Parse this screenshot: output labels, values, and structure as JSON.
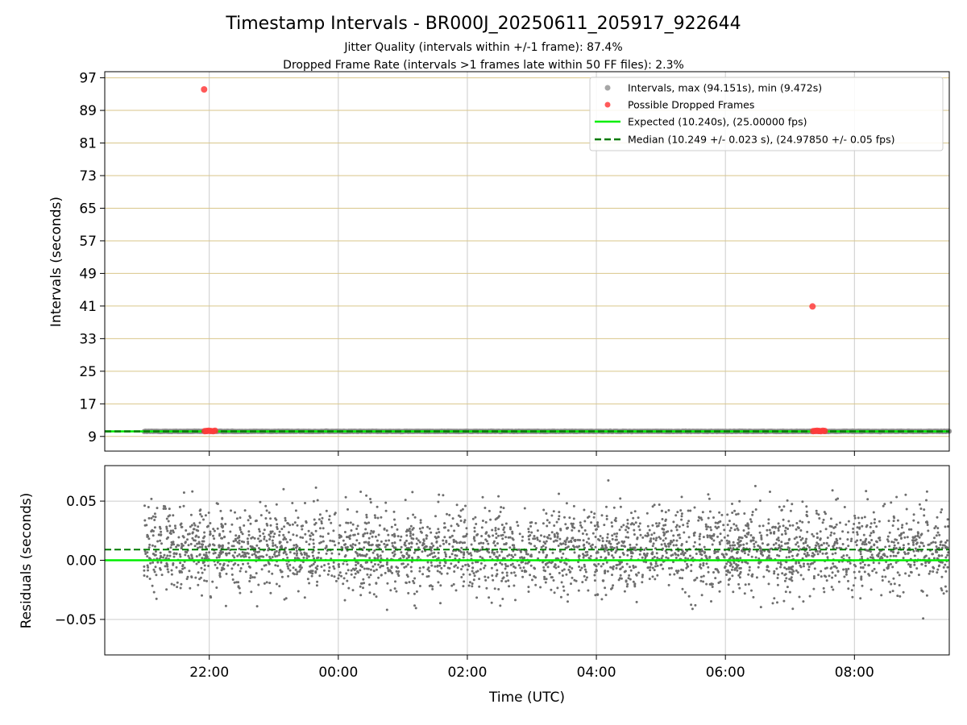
{
  "title": "Timestamp Intervals - BR000J_20250611_205917_922644",
  "subtitle_lines": [
    "Jitter Quality (intervals within +/-1 frame): 87.4%",
    "Dropped Frame Rate (intervals >1 frames late within 50 FF files): 2.3%"
  ],
  "colors": {
    "interval_points": "#8c8c8c",
    "dropped_points": "#ff3b3b",
    "expected_line": "#00ee00",
    "median_line": "#007a00",
    "residual_points": "#6e6e6e",
    "top_hgrid": "#d9c68a",
    "vgrid": "#cccccc"
  },
  "chart_data": [
    {
      "type": "scatter",
      "ylabel": "Intervals (seconds)",
      "xlabel": "",
      "x_units": "hours since 2025-06-11 00:00 UTC",
      "xlim": [
        20.38,
        33.47
      ],
      "ylim": [
        5.4,
        98.5
      ],
      "yticks": [
        9,
        17,
        25,
        33,
        41,
        49,
        57,
        65,
        73,
        81,
        89,
        97
      ],
      "xticks": [
        22,
        24,
        26,
        28,
        30,
        32
      ],
      "x_tick_labels": [
        "22:00",
        "00:00",
        "02:00",
        "04:00",
        "06:00",
        "08:00"
      ],
      "grid": "horizontal and vertical",
      "legend_position": "top-right",
      "legend": [
        "Intervals, max (94.151s), min (9.472s)",
        "Possible Dropped Frames",
        "Expected (10.240s), (25.00000 fps)",
        "Median (10.249 +/- 0.023 s), (24.97850 +/- 0.05 fps)"
      ],
      "series": [
        {
          "name": "Intervals",
          "style": "dense band of points",
          "x_range": [
            20.99,
            33.47
          ],
          "y_center": 10.25,
          "y_spread": 0.05
        },
        {
          "name": "Possible Dropped Frames",
          "points": [
            [
              21.92,
              94.15
            ],
            [
              21.93,
              10.3
            ],
            [
              21.96,
              10.35
            ],
            [
              21.99,
              10.4
            ],
            [
              22.02,
              10.35
            ],
            [
              22.06,
              10.3
            ],
            [
              22.09,
              10.4
            ],
            [
              31.35,
              40.9
            ],
            [
              31.36,
              10.3
            ],
            [
              31.39,
              10.35
            ],
            [
              31.42,
              10.4
            ],
            [
              31.45,
              10.35
            ],
            [
              31.48,
              10.3
            ],
            [
              31.51,
              10.4
            ],
            [
              31.54,
              10.35
            ]
          ]
        },
        {
          "name": "Expected",
          "style": "solid line",
          "y": 10.24
        },
        {
          "name": "Median",
          "style": "dashed line",
          "y": 10.249
        }
      ]
    },
    {
      "type": "scatter",
      "ylabel": "Residuals (seconds)",
      "xlabel": "Time (UTC)",
      "x_units": "hours since 2025-06-11 00:00 UTC",
      "xlim": [
        20.38,
        33.47
      ],
      "ylim": [
        -0.08,
        0.08
      ],
      "yticks": [
        -0.05,
        0.0,
        0.05
      ],
      "y_tick_labels": [
        "−0.05",
        "0.00",
        "0.05"
      ],
      "xticks": [
        22,
        24,
        26,
        28,
        30,
        32
      ],
      "x_tick_labels": [
        "22:00",
        "00:00",
        "02:00",
        "04:00",
        "06:00",
        "08:00"
      ],
      "grid": "horizontal and vertical",
      "series": [
        {
          "name": "Residuals",
          "style": "dense scatter",
          "x_range": [
            20.99,
            33.47
          ],
          "y_center": 0.009,
          "y_spread": 0.025
        },
        {
          "name": "Expected",
          "style": "solid line",
          "y": 0.0
        },
        {
          "name": "Median",
          "style": "dashed line",
          "y": 0.009
        }
      ]
    }
  ]
}
